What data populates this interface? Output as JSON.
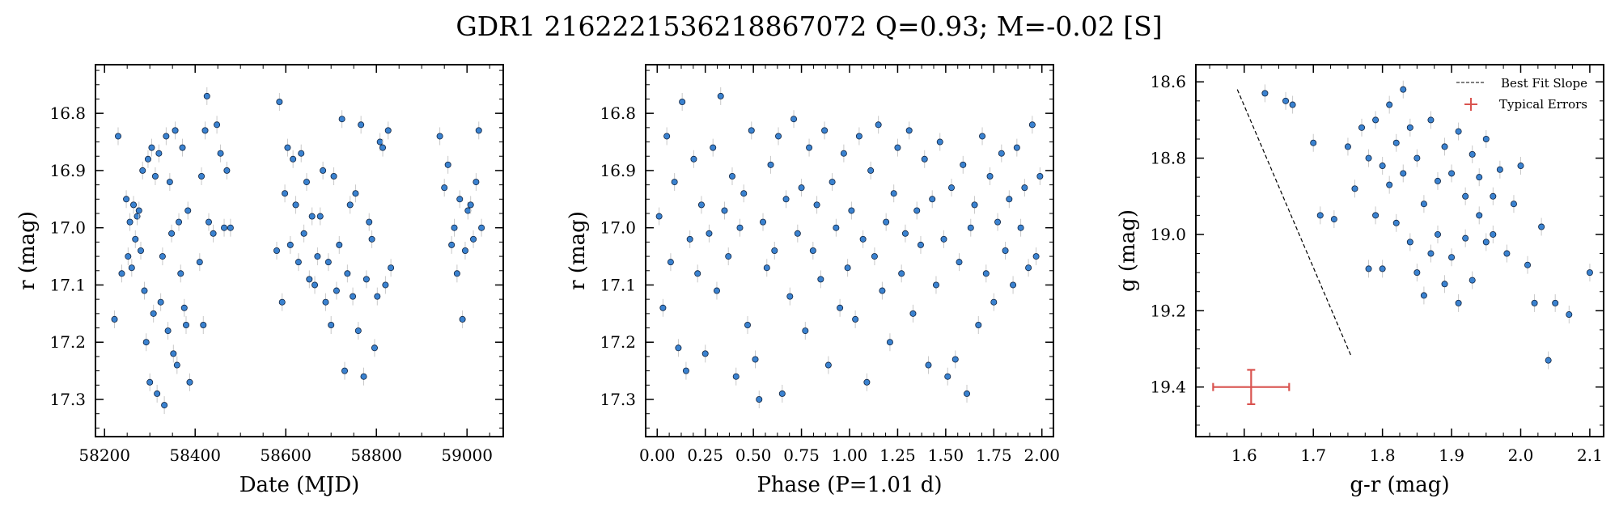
{
  "figure": {
    "title": "GDR1 2162221536218867072  Q=0.93; M=-0.02 [S]"
  },
  "colors": {
    "point_fill": "#3a82d0",
    "point_edge": "#10233f",
    "errorbar": "#c8c8c8",
    "fit_line": "#000000",
    "typical_error": "#d9534f"
  },
  "chart_data": [
    {
      "id": "lightcurve",
      "type": "scatter",
      "xlabel": "Date (MJD)",
      "ylabel": "r (mag)",
      "xlim": [
        58180,
        59080
      ],
      "ylim": [
        17.365,
        16.715
      ],
      "y_inverted": true,
      "xticks": [
        58200,
        58400,
        58600,
        58800,
        59000
      ],
      "yticks": [
        16.8,
        16.9,
        17.0,
        17.1,
        17.2,
        17.3
      ],
      "tick_decimals_x": 0,
      "tick_decimals_y": 1,
      "series": [
        {
          "x": [
            58222,
            58230,
            58238,
            58248,
            58252,
            58256,
            58260,
            58264,
            58268,
            58272,
            58276,
            58280,
            58284,
            58288,
            58292,
            58296,
            58300,
            58304,
            58308,
            58312,
            58316,
            58320,
            58324,
            58328,
            58332,
            58336,
            58340,
            58344,
            58348,
            58352,
            58356,
            58360,
            58364,
            58368,
            58372,
            58376,
            58380,
            58384,
            58388,
            58410,
            58414,
            58418,
            58422,
            58426,
            58430,
            58440,
            58448,
            58456,
            58464,
            58470,
            58478,
            58580,
            58586,
            58592,
            58598,
            58604,
            58610,
            58616,
            58622,
            58628,
            58634,
            58640,
            58646,
            58652,
            58658,
            58664,
            58670,
            58676,
            58682,
            58688,
            58694,
            58700,
            58706,
            58712,
            58718,
            58724,
            58730,
            58736,
            58742,
            58748,
            58754,
            58760,
            58766,
            58772,
            58778,
            58784,
            58790,
            58796,
            58802,
            58808,
            58814,
            58820,
            58826,
            58832,
            58940,
            58950,
            58958,
            58966,
            58972,
            58978,
            58984,
            58990,
            58996,
            59002,
            59008,
            59014,
            59020,
            59026,
            59032
          ],
          "y": [
            17.16,
            16.84,
            17.08,
            16.95,
            17.05,
            16.99,
            17.07,
            16.96,
            17.02,
            16.98,
            16.97,
            17.04,
            16.9,
            17.11,
            17.2,
            16.88,
            17.27,
            16.86,
            17.15,
            16.91,
            17.29,
            16.87,
            17.13,
            17.05,
            17.31,
            16.84,
            17.18,
            16.92,
            17.01,
            17.22,
            16.83,
            17.24,
            16.99,
            17.08,
            16.86,
            17.14,
            17.17,
            16.97,
            17.27,
            17.06,
            16.91,
            17.17,
            16.83,
            16.77,
            16.99,
            17.01,
            16.82,
            16.87,
            17.0,
            16.9,
            17.0,
            17.04,
            16.78,
            17.13,
            16.94,
            16.86,
            17.03,
            16.88,
            16.96,
            17.06,
            16.87,
            17.01,
            16.92,
            17.09,
            16.98,
            17.1,
            17.05,
            16.98,
            16.9,
            17.13,
            17.06,
            17.17,
            16.91,
            17.11,
            17.03,
            16.81,
            17.25,
            17.08,
            16.96,
            17.12,
            16.94,
            17.18,
            16.82,
            17.26,
            17.09,
            16.99,
            17.02,
            17.21,
            17.12,
            16.85,
            16.86,
            17.1,
            16.83,
            17.07,
            16.84,
            16.93,
            16.89,
            17.03,
            17.0,
            17.08,
            16.95,
            17.16,
            17.04,
            16.97,
            16.96,
            17.02,
            16.92,
            16.83,
            17.0
          ]
        }
      ]
    },
    {
      "id": "phase",
      "type": "scatter",
      "xlabel": "Phase (P=1.01 d)",
      "ylabel": "r (mag)",
      "xlim": [
        -0.06,
        2.06
      ],
      "ylim": [
        17.365,
        16.715
      ],
      "y_inverted": true,
      "xticks": [
        0.0,
        0.25,
        0.5,
        0.75,
        1.0,
        1.25,
        1.5,
        1.75,
        2.0
      ],
      "yticks": [
        16.8,
        16.9,
        17.0,
        17.1,
        17.2,
        17.3
      ],
      "tick_decimals_x": 2,
      "tick_decimals_y": 1,
      "series": [
        {
          "x": [
            0.01,
            0.03,
            0.05,
            0.07,
            0.09,
            0.11,
            0.13,
            0.15,
            0.17,
            0.19,
            0.21,
            0.23,
            0.25,
            0.27,
            0.29,
            0.31,
            0.33,
            0.35,
            0.37,
            0.39,
            0.41,
            0.43,
            0.45,
            0.47,
            0.49,
            0.51,
            0.53,
            0.55,
            0.57,
            0.59,
            0.61,
            0.63,
            0.65,
            0.67,
            0.69,
            0.71,
            0.73,
            0.75,
            0.77,
            0.79,
            0.81,
            0.83,
            0.85,
            0.87,
            0.89,
            0.91,
            0.93,
            0.95,
            0.97,
            0.99,
            1.01,
            1.03,
            1.05,
            1.07,
            1.09,
            1.11,
            1.13,
            1.15,
            1.17,
            1.19,
            1.21,
            1.23,
            1.25,
            1.27,
            1.29,
            1.31,
            1.33,
            1.35,
            1.37,
            1.39,
            1.41,
            1.43,
            1.45,
            1.47,
            1.49,
            1.51,
            1.53,
            1.55,
            1.57,
            1.59,
            1.61,
            1.63,
            1.65,
            1.67,
            1.69,
            1.71,
            1.73,
            1.75,
            1.77,
            1.79,
            1.81,
            1.83,
            1.85,
            1.87,
            1.89,
            1.91,
            1.93,
            1.95,
            1.97,
            1.99
          ],
          "y": [
            16.98,
            17.14,
            16.84,
            17.06,
            16.92,
            17.21,
            16.78,
            17.25,
            17.02,
            16.88,
            17.08,
            16.96,
            17.22,
            17.01,
            16.86,
            17.11,
            16.77,
            16.97,
            17.05,
            16.91,
            17.26,
            17.0,
            16.94,
            17.17,
            16.83,
            17.23,
            17.3,
            16.99,
            17.07,
            16.89,
            17.04,
            16.84,
            17.29,
            16.95,
            17.12,
            16.81,
            17.01,
            16.93,
            17.18,
            16.86,
            17.04,
            16.96,
            17.09,
            16.83,
            17.24,
            16.92,
            17.0,
            17.14,
            16.87,
            17.07,
            16.97,
            17.16,
            16.84,
            17.02,
            17.27,
            16.9,
            17.05,
            16.82,
            17.11,
            16.99,
            17.2,
            16.94,
            16.86,
            17.08,
            17.01,
            16.83,
            17.15,
            16.97,
            17.03,
            16.88,
            17.24,
            16.95,
            17.1,
            16.85,
            17.02,
            17.26,
            16.93,
            17.23,
            17.06,
            16.89,
            17.29,
            17.0,
            16.96,
            17.17,
            16.84,
            17.08,
            16.91,
            17.13,
            16.99,
            16.87,
            17.04,
            16.95,
            17.1,
            16.86,
            17.0,
            16.93,
            17.07,
            16.82,
            17.05,
            16.91
          ]
        }
      ]
    },
    {
      "id": "colormag",
      "type": "scatter",
      "xlabel": "g-r (mag)",
      "ylabel": "g (mag)",
      "xlim": [
        1.53,
        2.12
      ],
      "ylim": [
        19.53,
        18.555
      ],
      "y_inverted": true,
      "xticks": [
        1.6,
        1.7,
        1.8,
        1.9,
        2.0,
        2.1
      ],
      "yticks": [
        18.6,
        18.8,
        19.0,
        19.2,
        19.4
      ],
      "tick_decimals_x": 1,
      "tick_decimals_y": 1,
      "legend": {
        "position": "top-right",
        "entries": [
          "Best Fit Slope",
          "Typical Errors"
        ]
      },
      "fit_line": {
        "x": [
          1.59,
          1.755
        ],
        "y": [
          18.62,
          19.32
        ]
      },
      "typical_error": {
        "x": 1.61,
        "y": 19.4,
        "xerr": 0.055,
        "yerr": 0.045
      },
      "series": [
        {
          "x": [
            1.63,
            1.66,
            1.67,
            1.7,
            1.71,
            1.73,
            1.75,
            1.76,
            1.77,
            1.78,
            1.78,
            1.79,
            1.79,
            1.8,
            1.8,
            1.81,
            1.81,
            1.82,
            1.82,
            1.83,
            1.83,
            1.84,
            1.84,
            1.85,
            1.85,
            1.86,
            1.86,
            1.87,
            1.87,
            1.88,
            1.88,
            1.89,
            1.89,
            1.9,
            1.9,
            1.91,
            1.91,
            1.92,
            1.92,
            1.93,
            1.93,
            1.94,
            1.94,
            1.95,
            1.95,
            1.96,
            1.96,
            1.97,
            1.98,
            1.99,
            2.0,
            2.01,
            2.02,
            2.03,
            2.04,
            2.05,
            2.07,
            2.1
          ],
          "y": [
            18.63,
            18.65,
            18.66,
            18.76,
            18.95,
            18.96,
            18.77,
            18.88,
            18.72,
            18.8,
            19.09,
            18.7,
            18.95,
            18.82,
            19.09,
            18.66,
            18.87,
            18.76,
            18.97,
            18.62,
            18.84,
            18.72,
            19.02,
            18.8,
            19.1,
            18.92,
            19.16,
            18.7,
            19.05,
            18.86,
            19.0,
            18.77,
            19.13,
            18.84,
            19.06,
            18.73,
            19.18,
            18.9,
            19.01,
            18.79,
            19.12,
            18.95,
            18.85,
            19.02,
            18.75,
            18.9,
            19.0,
            18.83,
            19.05,
            18.92,
            18.82,
            19.08,
            19.18,
            18.98,
            19.33,
            19.18,
            19.21,
            19.1
          ]
        }
      ]
    }
  ]
}
